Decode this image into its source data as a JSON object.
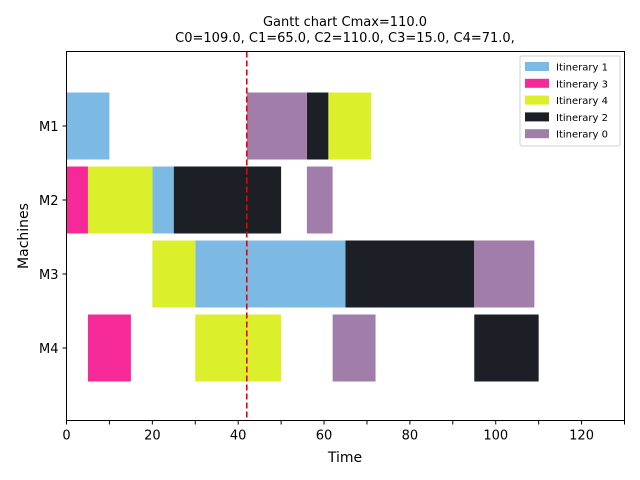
{
  "chart_data": {
    "type": "gantt",
    "title": "Gantt chart  Cmax=110.0",
    "subtitle": "C0=109.0, C1=65.0, C2=110.0, C3=15.0, C4=71.0,",
    "xlabel": "Time",
    "ylabel": "Machines",
    "xlim": [
      0,
      130
    ],
    "x_ticks": [
      0,
      20,
      40,
      60,
      80,
      100,
      120
    ],
    "machines": [
      "M1",
      "M2",
      "M3",
      "M4"
    ],
    "reference_line": {
      "x": 42,
      "color": "#e8000b",
      "style": "dashed"
    },
    "legend": {
      "placement": "top-right"
    },
    "series": [
      {
        "name": "Itinerary 1",
        "color": "#7cbae4",
        "tasks": [
          {
            "machine": "M1",
            "start": 0,
            "end": 10
          },
          {
            "machine": "M2",
            "start": 20,
            "end": 25
          },
          {
            "machine": "M3",
            "start": 30,
            "end": 65
          }
        ]
      },
      {
        "name": "Itinerary 3",
        "color": "#f52a98",
        "tasks": [
          {
            "machine": "M2",
            "start": 0,
            "end": 5
          },
          {
            "machine": "M4",
            "start": 5,
            "end": 15
          }
        ]
      },
      {
        "name": "Itinerary 4",
        "color": "#dbf02b",
        "tasks": [
          {
            "machine": "M2",
            "start": 5,
            "end": 20
          },
          {
            "machine": "M3",
            "start": 20,
            "end": 30
          },
          {
            "machine": "M4",
            "start": 30,
            "end": 50
          },
          {
            "machine": "M1",
            "start": 61,
            "end": 71
          }
        ]
      },
      {
        "name": "Itinerary 2",
        "color": "#1d1f26",
        "tasks": [
          {
            "machine": "M2",
            "start": 25,
            "end": 50
          },
          {
            "machine": "M1",
            "start": 56,
            "end": 61
          },
          {
            "machine": "M3",
            "start": 65,
            "end": 95
          },
          {
            "machine": "M4",
            "start": 95,
            "end": 110
          }
        ]
      },
      {
        "name": "Itinerary 0",
        "color": "#a07ea9",
        "tasks": [
          {
            "machine": "M1",
            "start": 42,
            "end": 56
          },
          {
            "machine": "M2",
            "start": 56,
            "end": 62
          },
          {
            "machine": "M4",
            "start": 62,
            "end": 72
          },
          {
            "machine": "M3",
            "start": 95,
            "end": 109
          }
        ]
      }
    ]
  }
}
